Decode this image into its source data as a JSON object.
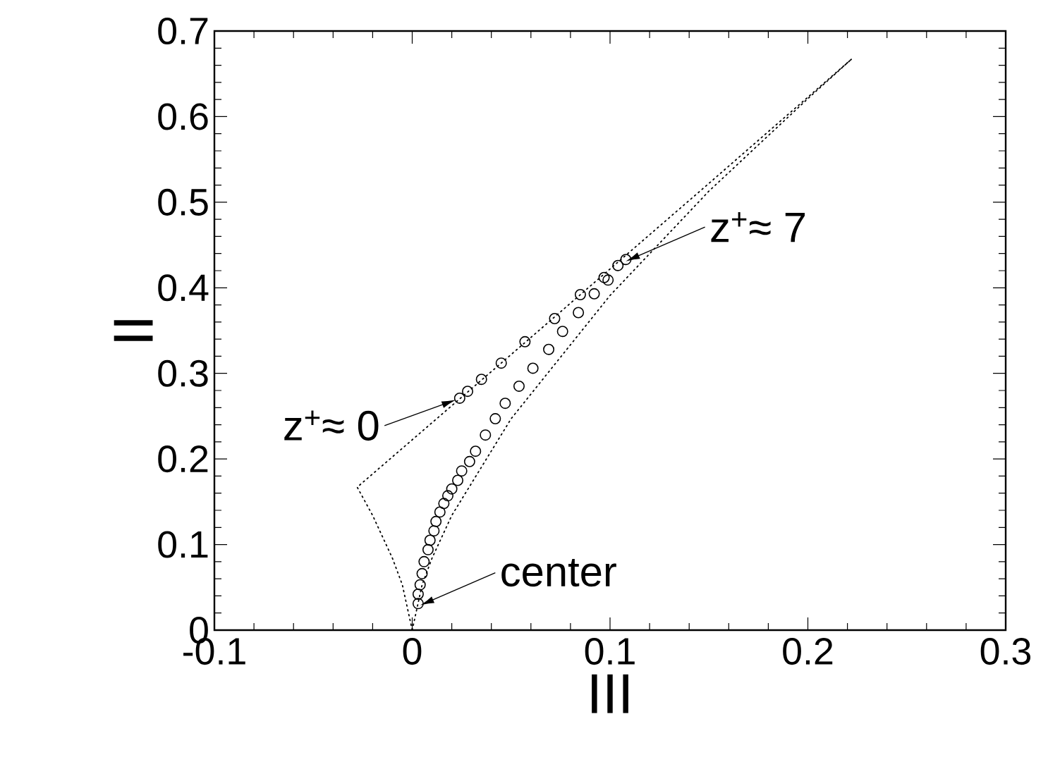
{
  "chart_data": {
    "type": "scatter",
    "xlabel": "III",
    "ylabel": "II",
    "xlim": [
      -0.1,
      0.3
    ],
    "xticks": [
      -0.1,
      0,
      0.1,
      0.2,
      0.3
    ],
    "ylim": [
      0,
      0.7
    ],
    "yticks": [
      0,
      0.1,
      0.2,
      0.3,
      0.4,
      0.5,
      0.6,
      0.7
    ],
    "series": [
      {
        "type": "line",
        "line_style": "dotted",
        "marker": "none",
        "color": "#000000",
        "x": [
          0,
          -0.005,
          -0.01,
          -0.02,
          -0.0278,
          0.05,
          0.1,
          0.15,
          0.222
        ],
        "values": [
          0,
          0.053,
          0.084,
          0.134,
          0.167,
          0.322,
          0.422,
          0.522,
          0.667
        ]
      },
      {
        "type": "line",
        "line_style": "dotted",
        "marker": "none",
        "color": "#000000",
        "x": [
          0,
          0.005,
          0.01,
          0.02,
          0.05,
          0.1,
          0.15,
          0.2,
          0.222
        ],
        "values": [
          0,
          0.053,
          0.084,
          0.134,
          0.247,
          0.391,
          0.513,
          0.621,
          0.667
        ]
      },
      {
        "type": "scatter",
        "marker": "circle",
        "color": "#000000",
        "x": [
          0.024,
          0.028,
          0.035,
          0.045,
          0.057,
          0.072,
          0.085,
          0.097,
          0.104,
          0.108,
          0.099,
          0.092,
          0.084,
          0.076,
          0.069,
          0.061,
          0.054,
          0.047,
          0.042,
          0.037,
          0.032,
          0.029,
          0.025,
          0.023,
          0.02,
          0.018,
          0.016,
          0.014,
          0.012,
          0.011,
          0.009,
          0.008,
          0.006,
          0.005,
          0.004,
          0.003,
          0.003
        ],
        "values": [
          0.271,
          0.279,
          0.293,
          0.312,
          0.337,
          0.364,
          0.392,
          0.412,
          0.426,
          0.433,
          0.409,
          0.393,
          0.371,
          0.349,
          0.328,
          0.306,
          0.285,
          0.265,
          0.247,
          0.228,
          0.209,
          0.197,
          0.186,
          0.175,
          0.165,
          0.157,
          0.148,
          0.138,
          0.127,
          0.116,
          0.105,
          0.094,
          0.08,
          0.066,
          0.053,
          0.042,
          0.031
        ]
      }
    ],
    "annotations": [
      {
        "text": "z$^{+}$≈ 0",
        "x": 0.022,
        "y": 0.269
      },
      {
        "text": "z$^{+}$≈ 7",
        "x": 0.108,
        "y": 0.431
      },
      {
        "text": "center",
        "x": 0.004,
        "y": 0.029
      }
    ]
  }
}
